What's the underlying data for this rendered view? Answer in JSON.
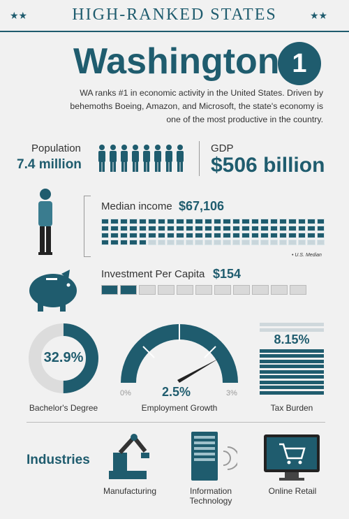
{
  "header": {
    "title": "HIGH-RANKED STATES",
    "star": "★★"
  },
  "state": {
    "name": "Washington",
    "rank": "1"
  },
  "description": "WA ranks #1 in economic activity in the United States. Driven by behemoths Boeing, Amazon, and Microsoft, the state's economy is one of the most productive in the country.",
  "population": {
    "label": "Population",
    "value": "7.4 million"
  },
  "gdp": {
    "label": "GDP",
    "value": "$506 billion"
  },
  "median_income": {
    "label": "Median income",
    "value": "$67,106",
    "us_median_label": "• U.S. Median",
    "filled_fraction": 0.8
  },
  "investment": {
    "label": "Investment Per Capita",
    "value": "$154",
    "filled_cells": 2,
    "total_cells": 11
  },
  "bachelors": {
    "value": "32.9%",
    "label": "Bachelor's Degree",
    "fraction": 0.329
  },
  "employment": {
    "value": "2.5%",
    "label": "Employment Growth",
    "min_label": "0%",
    "max_label": "3%",
    "fraction": 0.8333
  },
  "tax": {
    "value": "8.15%",
    "label": "Tax Burden"
  },
  "industries": {
    "title": "Industries",
    "items": [
      {
        "label": "Manufacturing",
        "icon": "robot-arm-icon"
      },
      {
        "label": "Information Technology",
        "icon": "server-rack-icon"
      },
      {
        "label": "Online Retail",
        "icon": "shopping-cart-monitor-icon"
      }
    ]
  },
  "colors": {
    "primary": "#1f5c6e",
    "light": "#dcdcdc",
    "background": "#f1f1f1"
  }
}
